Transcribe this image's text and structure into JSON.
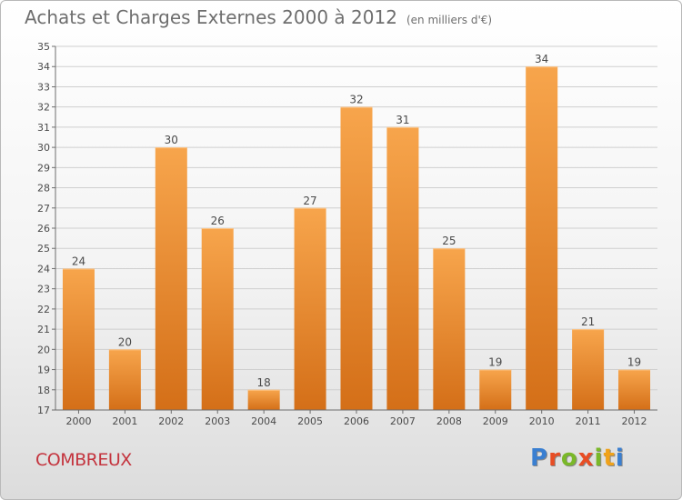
{
  "header": {
    "title": "Achats et Charges Externes 2000 à 2012",
    "unit": "(en milliers d'€)"
  },
  "footer": {
    "commune": "COMBREUX",
    "brand_letters": [
      "P",
      "r",
      "o",
      "x",
      "i",
      "t",
      "i"
    ],
    "brand_colors": [
      "#3a7fd1",
      "#e84d24",
      "#7ab829",
      "#e84d24",
      "#7ab829",
      "#f0a21a",
      "#3a7fd1"
    ]
  },
  "colors": {
    "bar_top": "#f7a54c",
    "bar_bottom": "#d46f18",
    "grid": "#cfcfcf",
    "axis": "#6d6d6d"
  },
  "chart_data": {
    "type": "bar",
    "categories": [
      "2000",
      "2001",
      "2002",
      "2003",
      "2004",
      "2005",
      "2006",
      "2007",
      "2008",
      "2009",
      "2010",
      "2011",
      "2012"
    ],
    "values": [
      24,
      20,
      30,
      26,
      18,
      27,
      32,
      31,
      25,
      19,
      34,
      21,
      19
    ],
    "title": "Achats et Charges Externes 2000 à 2012",
    "xlabel": "",
    "ylabel": "",
    "ylim": [
      17,
      35
    ],
    "yticks": [
      17,
      18,
      19,
      20,
      21,
      22,
      23,
      24,
      25,
      26,
      27,
      28,
      29,
      30,
      31,
      32,
      33,
      34,
      35
    ],
    "grid": true,
    "data_labels": true
  }
}
